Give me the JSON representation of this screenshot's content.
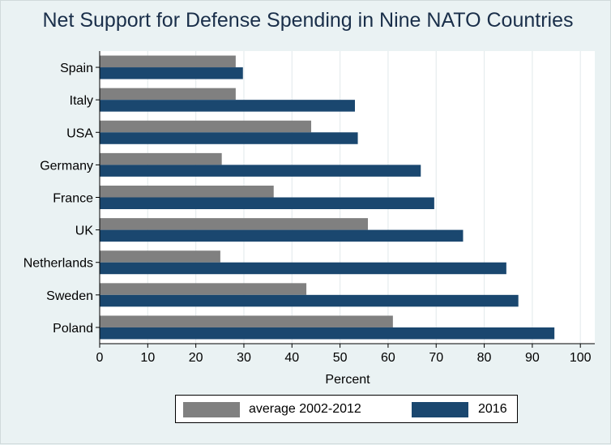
{
  "chart_data": {
    "type": "bar",
    "orientation": "horizontal",
    "title": "Net Support for Defense Spending in Nine NATO Countries",
    "xlabel": "Percent",
    "ylabel": "",
    "xlim": [
      0,
      103
    ],
    "x_ticks": [
      "0",
      "10",
      "20",
      "30",
      "40",
      "50",
      "60",
      "70",
      "80",
      "90",
      "100"
    ],
    "grid": true,
    "legend_position": "bottom",
    "categories": [
      "Spain",
      "Italy",
      "USA",
      "Germany",
      "France",
      "UK",
      "Netherlands",
      "Sweden",
      "Poland"
    ],
    "series": [
      {
        "name": "average 2002-2012",
        "color": "#808080",
        "values": [
          28.3,
          28.3,
          44,
          25.4,
          36.2,
          55.8,
          25.1,
          43,
          61
        ]
      },
      {
        "name": "2016",
        "color": "#1a476f",
        "values": [
          29.8,
          53.1,
          53.7,
          66.8,
          69.6,
          75.6,
          84.6,
          87.1,
          94.6
        ]
      }
    ]
  }
}
